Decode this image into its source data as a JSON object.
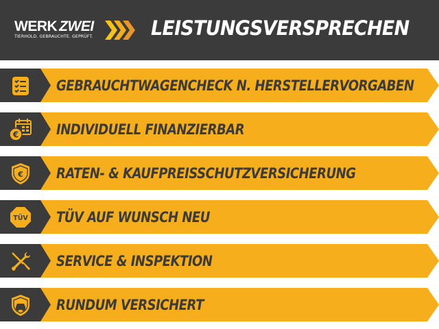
{
  "header": {
    "logo": {
      "brand_part1": "WERK",
      "brand_part2": "ZWEI",
      "tagline": "TIERHOLD. GEBRAUCHTE. GEPRÜFT."
    },
    "title": "LEISTUNGSVERSPRECHEN"
  },
  "colors": {
    "accent": "#f6ae1c",
    "dark": "#3b3b3b",
    "chevron_light": "#f6c21c",
    "chevron_dark": "#e8962a"
  },
  "items": [
    {
      "label": "GEBRAUCHTWAGENCHECK N. HERSTELLERVORGABEN",
      "icon": "checklist-icon"
    },
    {
      "label": "INDIVIDUELL FINANZIERBAR",
      "icon": "calendar-euro-icon"
    },
    {
      "label": "RATEN- & KAUFPREISSCHUTZVERSICHERUNG",
      "icon": "shield-euro-icon"
    },
    {
      "label": "TÜV AUF WUNSCH NEU",
      "icon": "tuv-badge-icon",
      "badge_text": "TÜV"
    },
    {
      "label": "SERVICE & INSPEKTION",
      "icon": "wrench-screwdriver-icon"
    },
    {
      "label": "RUNDUM VERSICHERT",
      "icon": "shield-car-icon"
    }
  ]
}
